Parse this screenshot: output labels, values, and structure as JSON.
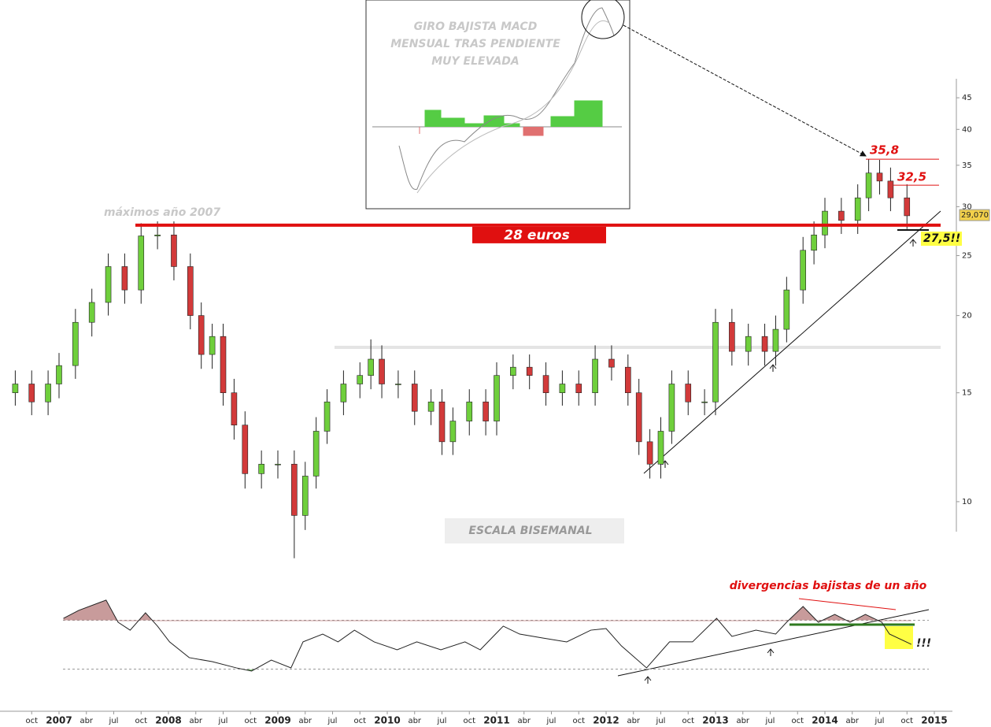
{
  "chart_data": {
    "type": "candlestick",
    "x": [
      2006.6,
      2006.75,
      2006.9,
      2007.0,
      2007.15,
      2007.3,
      2007.45,
      2007.6,
      2007.75,
      2007.9,
      2008.05,
      2008.2,
      2008.3,
      2008.4,
      2008.5,
      2008.6,
      2008.7,
      2008.85,
      2009.0,
      2009.15,
      2009.25,
      2009.35,
      2009.45,
      2009.6,
      2009.75,
      2009.85,
      2009.95,
      2010.1,
      2010.25,
      2010.4,
      2010.5,
      2010.6,
      2010.75,
      2010.9,
      2011.0,
      2011.15,
      2011.3,
      2011.45,
      2011.6,
      2011.75,
      2011.9,
      2012.05,
      2012.2,
      2012.3,
      2012.4,
      2012.5,
      2012.6,
      2012.75,
      2012.9,
      2013.0,
      2013.15,
      2013.3,
      2013.45,
      2013.55,
      2013.65,
      2013.8,
      2013.9,
      2014.0,
      2014.15,
      2014.3,
      2014.4,
      2014.5,
      2014.6,
      2014.75
    ],
    "open": [
      15,
      15.5,
      14.5,
      15.5,
      16.6,
      19.5,
      21,
      24,
      22,
      26.9,
      27,
      24,
      20,
      17.3,
      18.5,
      15,
      13.3,
      11.1,
      11.5,
      11.5,
      9.5,
      11,
      13,
      14.5,
      15.5,
      16,
      17,
      15.5,
      15.5,
      14,
      14.5,
      12.5,
      13.5,
      14.5,
      13.5,
      16,
      16.5,
      16,
      15,
      15.5,
      15,
      17,
      16.5,
      15,
      12.5,
      11.5,
      13,
      15.5,
      14.5,
      14.5,
      19.5,
      17.5,
      18.5,
      17.5,
      19,
      22,
      25.5,
      27,
      29.5,
      28.5,
      31,
      34,
      33,
      31
    ],
    "high": [
      16.3,
      16.3,
      16.3,
      17.4,
      20.5,
      22.1,
      25.2,
      25.2,
      28.2,
      28.4,
      28.4,
      25.2,
      21,
      19.4,
      19.4,
      15.8,
      14,
      12.1,
      12.1,
      12.1,
      11.6,
      13.7,
      15.2,
      16.3,
      16.8,
      18.3,
      17.9,
      16.3,
      16.3,
      15.2,
      15.2,
      14.2,
      15.2,
      15.2,
      16.8,
      17.3,
      17.3,
      16.8,
      16.3,
      16.3,
      17.9,
      17.9,
      17.3,
      15.8,
      13.1,
      13.7,
      16.3,
      16.3,
      15.2,
      20.5,
      20.5,
      19.4,
      19.4,
      20,
      23.1,
      26.8,
      28.4,
      31,
      31,
      32.6,
      35.8,
      35.7,
      34.7,
      32.6
    ],
    "low": [
      14.3,
      13.8,
      13.8,
      14.7,
      15.8,
      18.5,
      20,
      20.9,
      20.9,
      25.6,
      22.8,
      19,
      16.4,
      16.4,
      14.3,
      12.6,
      10.5,
      10.5,
      10.9,
      8.1,
      9,
      10.5,
      12.4,
      13.8,
      14.7,
      15.2,
      14.7,
      14.7,
      13.3,
      13.3,
      11.9,
      11.9,
      12.8,
      12.8,
      12.8,
      15.2,
      15.2,
      14.3,
      14.3,
      14.3,
      14.3,
      15.7,
      14.3,
      11.9,
      10.9,
      10.9,
      12.4,
      13.8,
      13.8,
      13.8,
      16.6,
      16.6,
      16.6,
      16.6,
      18.1,
      20.9,
      24.2,
      25.7,
      27.1,
      27.1,
      29.5,
      31.4,
      29.5,
      27.6
    ],
    "close": [
      15.5,
      14.5,
      15.5,
      16.6,
      19.5,
      21,
      24,
      22,
      26.9,
      27,
      24,
      20,
      17.3,
      18.5,
      15,
      13.3,
      11.1,
      11.5,
      11.5,
      9.5,
      11,
      13,
      14.5,
      15.5,
      16,
      17,
      15.5,
      15.5,
      14,
      14.5,
      12.5,
      13.5,
      14.5,
      13.5,
      16,
      16.5,
      16,
      15,
      15.5,
      15,
      17,
      16.5,
      15,
      12.5,
      11.5,
      13,
      15.5,
      14.5,
      14.5,
      19.5,
      17.5,
      18.5,
      17.5,
      19,
      22,
      25.5,
      27,
      29.5,
      28.5,
      31,
      34,
      33,
      31,
      29
    ],
    "up_color": "#6fcf3c",
    "down_color": "#d23a3a",
    "log_scale": true,
    "xlim": [
      2006.46,
      2015.14
    ],
    "ylim": [
      8,
      48.3
    ],
    "yticks": [
      10,
      15,
      20,
      25,
      30,
      35,
      40,
      45
    ],
    "xticks": [
      {
        "value": 2006.75,
        "label": "oct"
      },
      2007,
      {
        "value": 2007.25,
        "label": "abr"
      },
      {
        "value": 2007.5,
        "label": "jul"
      },
      {
        "value": 2007.75,
        "label": "oct"
      },
      2008,
      {
        "value": 2008.25,
        "label": "abr"
      },
      {
        "value": 2008.5,
        "label": "jul"
      },
      {
        "value": 2008.75,
        "label": "oct"
      },
      2009,
      {
        "value": 2009.25,
        "label": "abr"
      },
      {
        "value": 2009.5,
        "label": "jul"
      },
      {
        "value": 2009.75,
        "label": "oct"
      },
      2010,
      {
        "value": 2010.25,
        "label": "abr"
      },
      {
        "value": 2010.5,
        "label": "jul"
      },
      {
        "value": 2010.75,
        "label": "oct"
      },
      2011,
      {
        "value": 2011.25,
        "label": "abr"
      },
      {
        "value": 2011.5,
        "label": "jul"
      },
      {
        "value": 2011.75,
        "label": "oct"
      },
      2012,
      {
        "value": 2012.25,
        "label": "abr"
      },
      {
        "value": 2012.5,
        "label": "jul"
      },
      {
        "value": 2012.75,
        "label": "oct"
      },
      2013,
      {
        "value": 2013.25,
        "label": "abr"
      },
      {
        "value": 2013.5,
        "label": "jul"
      },
      {
        "value": 2013.75,
        "label": "oct"
      },
      2014,
      {
        "value": 2014.25,
        "label": "abr"
      },
      {
        "value": 2014.5,
        "label": "jul"
      },
      {
        "value": 2014.75,
        "label": "oct"
      },
      2015
    ],
    "last_price": {
      "value": 29.07,
      "label": "29,070"
    },
    "levels": [
      {
        "value": 28,
        "label": "28 euros",
        "color": "#e01010"
      },
      {
        "value": 35.8,
        "label": "35,8",
        "color": "#e01010"
      },
      {
        "value": 32.5,
        "label": "32,5",
        "color": "#e01010"
      },
      {
        "value": 27.5,
        "label": "27,5!!",
        "color": "#111111"
      }
    ],
    "annotations": {
      "max_2007": "máximos año 2007",
      "scale": "ESCALA BISEMANAL",
      "inset": [
        "GIRO BAJISTA MACD",
        "MENSUAL TRAS PENDIENTE",
        "MUY ELEVADA"
      ],
      "divergence": "divergencias bajistas de un año",
      "alert": "!!!"
    },
    "oscillator": {
      "x": [
        2007.04,
        2007.18,
        2007.43,
        2007.54,
        2007.65,
        2007.79,
        2007.9,
        2008.01,
        2008.19,
        2008.4,
        2008.62,
        2008.76,
        2008.94,
        2009.12,
        2009.23,
        2009.41,
        2009.55,
        2009.7,
        2009.88,
        2010.09,
        2010.27,
        2010.49,
        2010.71,
        2010.85,
        2011.06,
        2011.21,
        2011.42,
        2011.64,
        2011.86,
        2012.0,
        2012.14,
        2012.37,
        2012.58,
        2012.79,
        2013.01,
        2013.15,
        2013.37,
        2013.55,
        2013.65,
        2013.8,
        2013.94,
        2014.09,
        2014.23,
        2014.37,
        2014.52,
        2014.59,
        2014.79
      ],
      "values": [
        71.6,
        78.1,
        86.5,
        68.4,
        61.9,
        76.1,
        65.2,
        52.3,
        39.4,
        36.1,
        31,
        28.4,
        37.4,
        31,
        52.3,
        58.7,
        52.3,
        61.9,
        52.3,
        45.8,
        52.3,
        45.8,
        52.3,
        45.8,
        65.2,
        58.7,
        55.5,
        52.3,
        61.9,
        63.2,
        49,
        31,
        52.3,
        52.3,
        71.6,
        56.8,
        61.9,
        58.7,
        68.4,
        81.3,
        68.4,
        74.8,
        68.4,
        74.8,
        68.4,
        58.7,
        50.3
      ],
      "ylim": [
        0,
        100
      ],
      "bands": [
        30,
        70
      ],
      "color": "#222222",
      "fill_color": "#b07070"
    }
  }
}
